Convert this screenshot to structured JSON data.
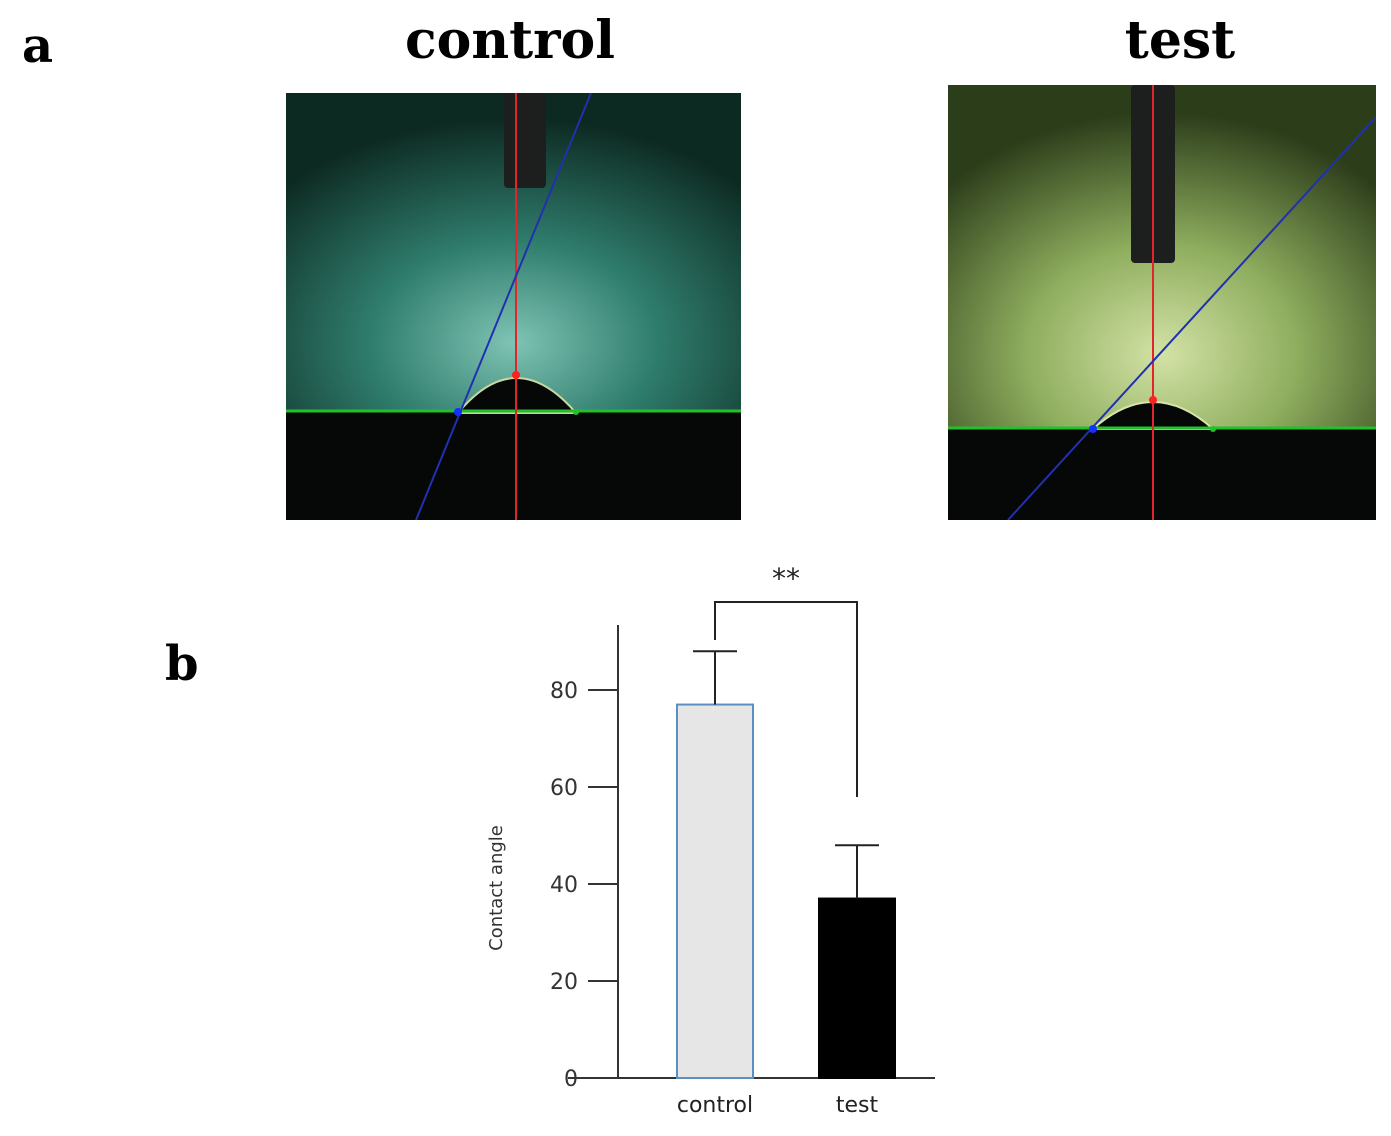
{
  "panels": {
    "a_label": "a",
    "b_label": "b"
  },
  "images": [
    {
      "title": "control",
      "tint": "#2e7a6a",
      "glow": "#5fb0a0"
    },
    {
      "title": "test",
      "tint": "#5b7a3a",
      "glow": "#b6d08a"
    }
  ],
  "chart_data": {
    "type": "bar",
    "categories": [
      "control",
      "test"
    ],
    "values": [
      77,
      37
    ],
    "errors": [
      11,
      11
    ],
    "ylabel": "Contact angle",
    "xlabel": "",
    "ylim": [
      0,
      90
    ],
    "yticks": [
      0,
      20,
      40,
      60,
      80
    ],
    "bar_colors": [
      "#e6e6e6",
      "#000000"
    ],
    "bar_edge_colors": [
      "#5b8fc4",
      "#000000"
    ],
    "significance": "**",
    "grid": false
  }
}
